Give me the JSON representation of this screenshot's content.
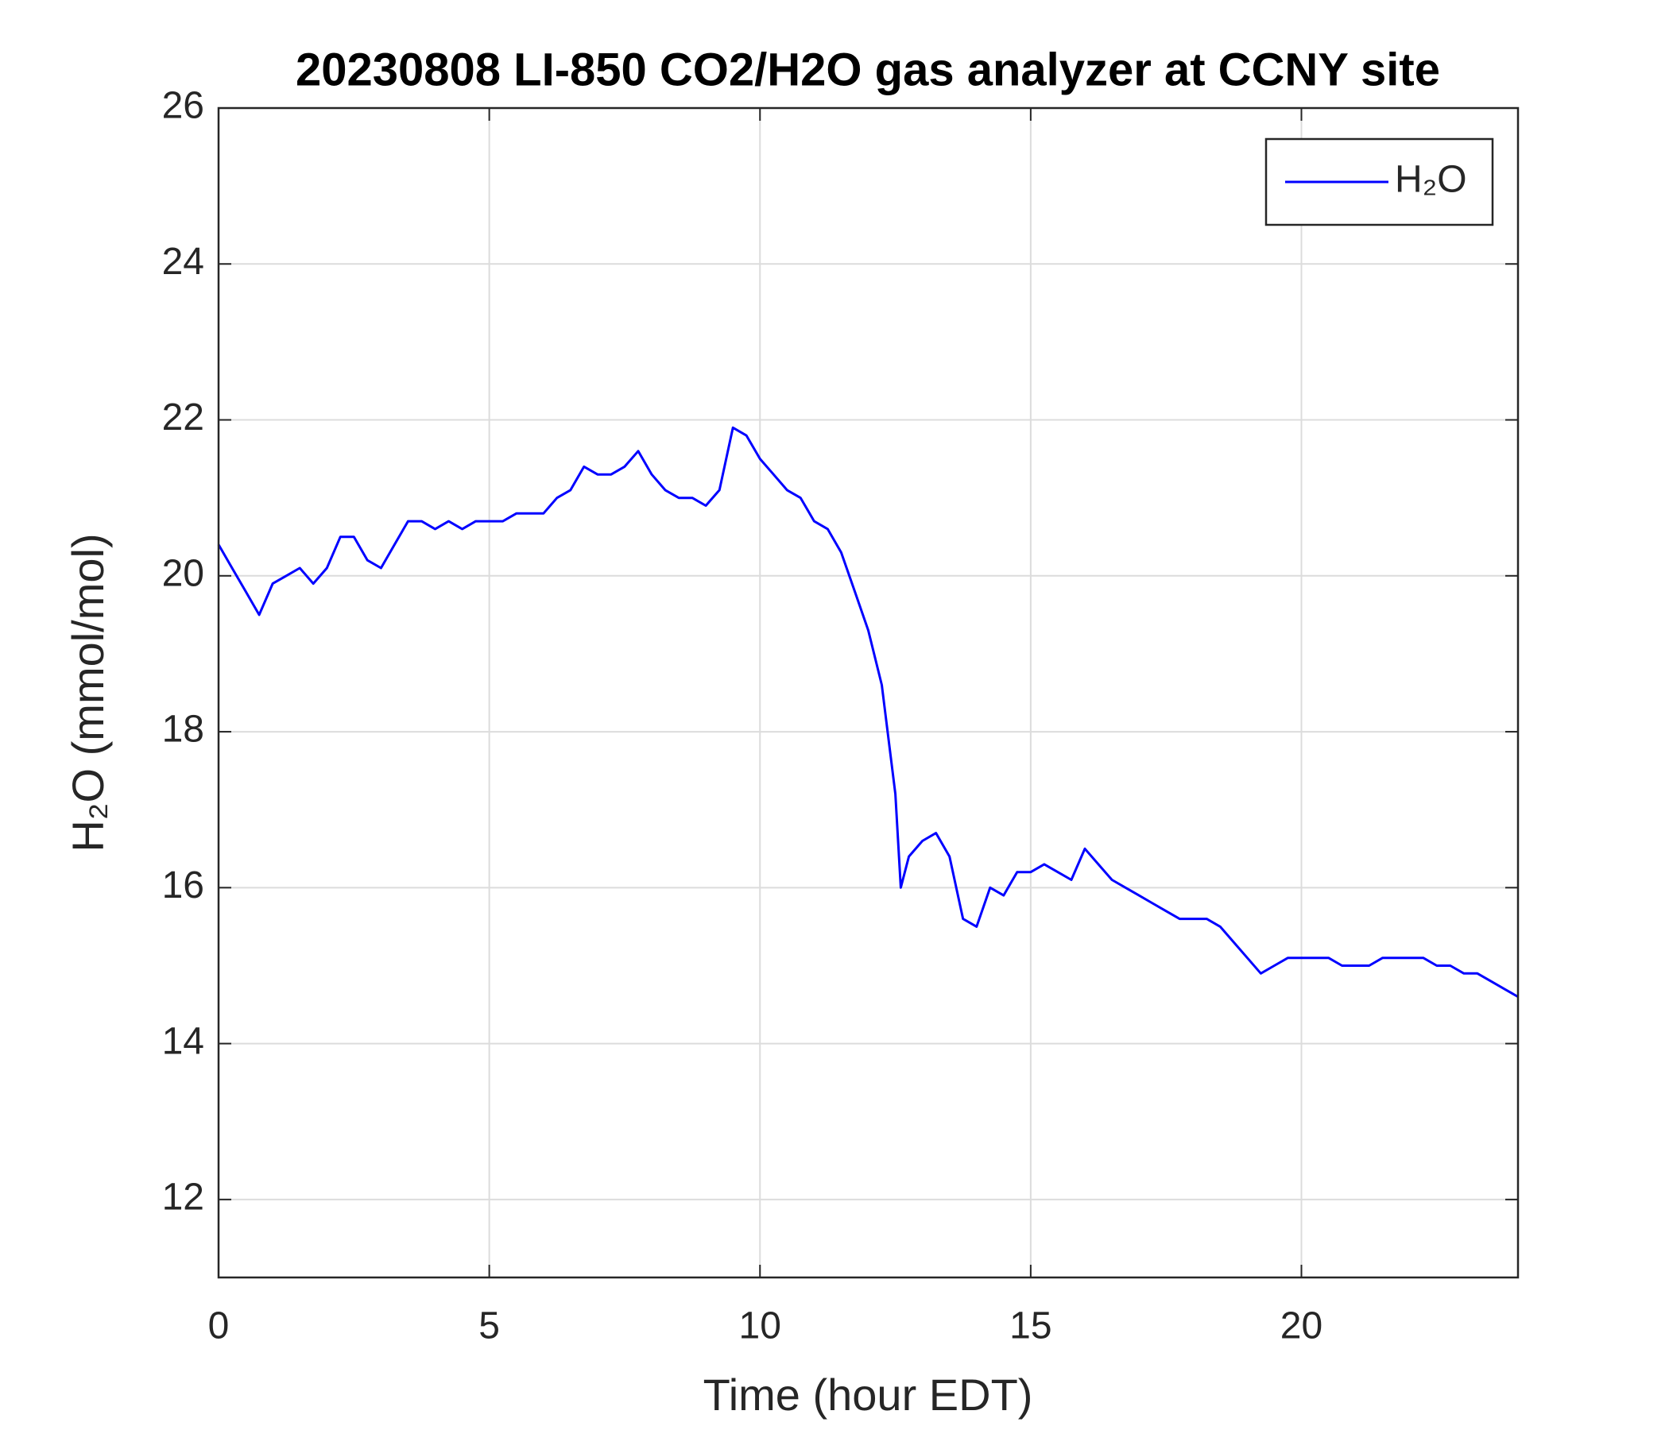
{
  "chart_data": {
    "type": "line",
    "title": "20230808 LI-850 CO2/H2O gas analyzer at CCNY site",
    "xlabel": "Time (hour EDT)",
    "ylabel": "H₂O (mmol/mol)",
    "x": [
      0,
      0.25,
      0.5,
      0.75,
      1,
      1.25,
      1.5,
      1.75,
      2,
      2.25,
      2.5,
      2.75,
      3,
      3.25,
      3.5,
      3.75,
      4,
      4.25,
      4.5,
      4.75,
      5,
      5.25,
      5.5,
      5.75,
      6,
      6.25,
      6.5,
      6.75,
      7,
      7.25,
      7.5,
      7.75,
      8,
      8.25,
      8.5,
      8.75,
      9,
      9.25,
      9.5,
      9.75,
      10,
      10.25,
      10.5,
      10.75,
      11,
      11.25,
      11.5,
      11.75,
      12,
      12.25,
      12.5,
      12.6,
      12.75,
      13,
      13.25,
      13.5,
      13.75,
      14,
      14.25,
      14.5,
      14.75,
      15,
      15.25,
      15.5,
      15.75,
      16,
      16.25,
      16.5,
      16.75,
      17,
      17.25,
      17.5,
      17.75,
      18,
      18.25,
      18.5,
      18.75,
      19,
      19.25,
      19.5,
      19.75,
      20,
      20.25,
      20.5,
      20.75,
      21,
      21.25,
      21.5,
      21.75,
      22,
      22.25,
      22.5,
      22.75,
      23,
      23.25,
      23.5,
      23.75,
      24
    ],
    "series": [
      {
        "name": "H₂O",
        "color": "#0000ff",
        "values": [
          20.4,
          20.1,
          19.8,
          19.5,
          19.9,
          20.0,
          20.1,
          19.9,
          20.1,
          20.5,
          20.5,
          20.2,
          20.1,
          20.4,
          20.7,
          20.7,
          20.6,
          20.7,
          20.6,
          20.7,
          20.7,
          20.7,
          20.8,
          20.8,
          20.8,
          21.0,
          21.1,
          21.4,
          21.3,
          21.3,
          21.4,
          21.6,
          21.3,
          21.1,
          21.0,
          21.0,
          20.9,
          21.1,
          21.9,
          21.8,
          21.5,
          21.3,
          21.1,
          21.0,
          20.7,
          20.6,
          20.3,
          19.8,
          19.3,
          18.6,
          17.2,
          16.0,
          16.4,
          16.6,
          16.7,
          16.4,
          15.6,
          15.5,
          16.0,
          15.9,
          16.2,
          16.2,
          16.3,
          16.2,
          16.1,
          16.5,
          16.3,
          16.1,
          16.0,
          15.9,
          15.8,
          15.7,
          15.6,
          15.6,
          15.6,
          15.5,
          15.3,
          15.1,
          14.9,
          15.0,
          15.1,
          15.1,
          15.1,
          15.1,
          15.0,
          15.0,
          15.0,
          15.1,
          15.1,
          15.1,
          15.1,
          15.0,
          15.0,
          14.9,
          14.9,
          14.8,
          14.7,
          14.6
        ]
      }
    ],
    "xlim": [
      0,
      24
    ],
    "xticks": [
      0,
      5,
      10,
      15,
      20
    ],
    "ylim": [
      11,
      26
    ],
    "yticks": [
      12,
      14,
      16,
      18,
      20,
      22,
      24,
      26
    ],
    "grid": true,
    "legend": "northeast"
  }
}
